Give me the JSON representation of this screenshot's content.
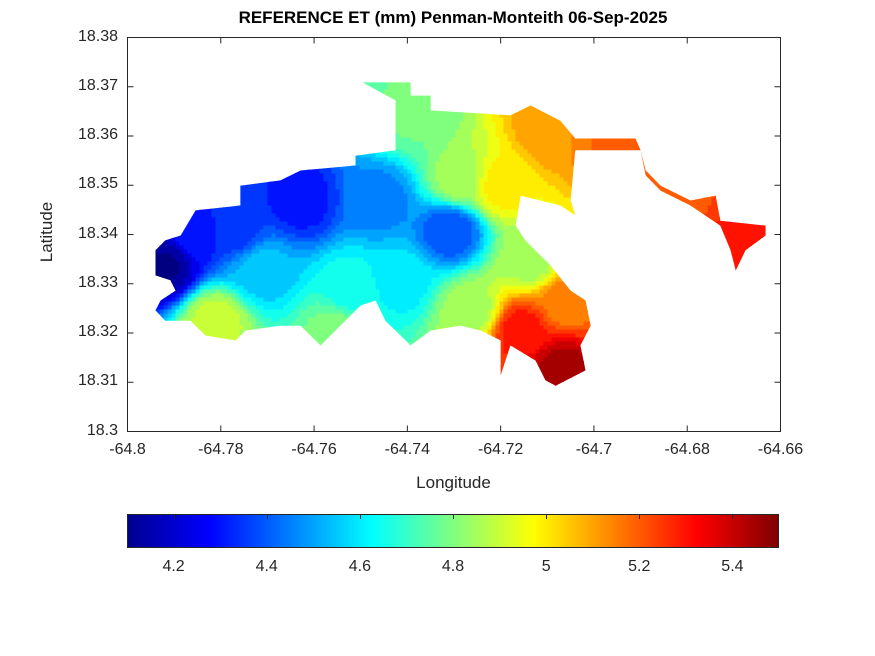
{
  "chart_data": {
    "type": "heatmap",
    "title": "REFERENCE ET (mm) Penman-Monteith 06-Sep-2025",
    "xlabel": "Longitude",
    "ylabel": "Latitude",
    "xlim": [
      -64.8,
      -64.66
    ],
    "ylim": [
      18.3,
      18.38
    ],
    "xticks": [
      -64.8,
      -64.78,
      -64.76,
      -64.74,
      -64.72,
      -64.7,
      -64.68,
      -64.66
    ],
    "xtick_labels": [
      "-64.8",
      "-64.78",
      "-64.76",
      "-64.74",
      "-64.72",
      "-64.7",
      "-64.68",
      "-64.66"
    ],
    "yticks": [
      18.3,
      18.31,
      18.32,
      18.33,
      18.34,
      18.35,
      18.36,
      18.37,
      18.38
    ],
    "ytick_labels": [
      "18.3",
      "18.31",
      "18.32",
      "18.33",
      "18.34",
      "18.35",
      "18.36",
      "18.37",
      "18.38"
    ],
    "colormap": "jet",
    "colorbar": {
      "location": "southoutside",
      "clim": [
        4.1,
        5.5
      ],
      "ticks": [
        4.2,
        4.4,
        4.6,
        4.8,
        5.0,
        5.2,
        5.4
      ],
      "tick_labels": [
        "4.2",
        "4.4",
        "4.6",
        "4.8",
        "5",
        "5.2",
        "5.4"
      ]
    },
    "outline_lonlat": [
      [
        -64.794,
        18.3368
      ],
      [
        -64.7919,
        18.3388
      ],
      [
        -64.7886,
        18.3398
      ],
      [
        -64.7854,
        18.3449
      ],
      [
        -64.7758,
        18.3459
      ],
      [
        -64.7758,
        18.3499
      ],
      [
        -64.7672,
        18.351
      ],
      [
        -64.7629,
        18.353
      ],
      [
        -64.7511,
        18.354
      ],
      [
        -64.7511,
        18.356
      ],
      [
        -64.7425,
        18.3571
      ],
      [
        -64.7425,
        18.3672
      ],
      [
        -64.7496,
        18.3709
      ],
      [
        -64.7393,
        18.3709
      ],
      [
        -64.7393,
        18.3682
      ],
      [
        -64.735,
        18.3682
      ],
      [
        -64.735,
        18.3652
      ],
      [
        -64.7179,
        18.3642
      ],
      [
        -64.7136,
        18.3662
      ],
      [
        -64.7072,
        18.3631
      ],
      [
        -64.704,
        18.3595
      ],
      [
        -64.6911,
        18.3595
      ],
      [
        -64.69,
        18.3571
      ],
      [
        -64.6889,
        18.353
      ],
      [
        -64.6857,
        18.3499
      ],
      [
        -64.6793,
        18.3469
      ],
      [
        -64.6739,
        18.3479
      ],
      [
        -64.6729,
        18.3428
      ],
      [
        -64.6632,
        18.3418
      ],
      [
        -64.6632,
        18.3398
      ],
      [
        -64.6675,
        18.3368
      ],
      [
        -64.6696,
        18.3327
      ],
      [
        -64.6707,
        18.3368
      ],
      [
        -64.6729,
        18.3418
      ],
      [
        -64.6793,
        18.3459
      ],
      [
        -64.6857,
        18.3489
      ],
      [
        -64.6889,
        18.352
      ],
      [
        -64.69,
        18.3571
      ],
      [
        -64.704,
        18.3571
      ],
      [
        -64.705,
        18.3469
      ],
      [
        -64.704,
        18.3439
      ],
      [
        -64.7072,
        18.3459
      ],
      [
        -64.7157,
        18.3479
      ],
      [
        -64.7168,
        18.3418
      ],
      [
        -64.7147,
        18.3388
      ],
      [
        -64.7093,
        18.3337
      ],
      [
        -64.705,
        18.3286
      ],
      [
        -64.7018,
        18.3266
      ],
      [
        -64.7007,
        18.3215
      ],
      [
        -64.7029,
        18.3175
      ],
      [
        -64.7018,
        18.3124
      ],
      [
        -64.7082,
        18.3093
      ],
      [
        -64.7104,
        18.3104
      ],
      [
        -64.7125,
        18.3144
      ],
      [
        -64.7179,
        18.3175
      ],
      [
        -64.72,
        18.3114
      ],
      [
        -64.72,
        18.3185
      ],
      [
        -64.7243,
        18.3205
      ],
      [
        -64.7286,
        18.3215
      ],
      [
        -64.735,
        18.3205
      ],
      [
        -64.7393,
        18.3175
      ],
      [
        -64.7447,
        18.3225
      ],
      [
        -64.7468,
        18.3266
      ],
      [
        -64.75,
        18.3256
      ],
      [
        -64.7533,
        18.3225
      ],
      [
        -64.7586,
        18.3175
      ],
      [
        -64.7629,
        18.3215
      ],
      [
        -64.7672,
        18.3215
      ],
      [
        -64.7747,
        18.3205
      ],
      [
        -64.7768,
        18.3185
      ],
      [
        -64.7833,
        18.3195
      ],
      [
        -64.7865,
        18.3225
      ],
      [
        -64.7919,
        18.3225
      ],
      [
        -64.794,
        18.3246
      ],
      [
        -64.7929,
        18.3266
      ],
      [
        -64.7897,
        18.3286
      ],
      [
        -64.7908,
        18.3307
      ],
      [
        -64.794,
        18.3317
      ]
    ],
    "samples": [
      {
        "lon": -64.7919,
        "lat": 18.3337,
        "value": 4.12
      },
      {
        "lon": -64.7854,
        "lat": 18.3398,
        "value": 4.3
      },
      {
        "lon": -64.7629,
        "lat": 18.3469,
        "value": 4.3
      },
      {
        "lon": -64.7768,
        "lat": 18.3408,
        "value": 4.35
      },
      {
        "lon": -64.7715,
        "lat": 18.3327,
        "value": 4.55
      },
      {
        "lon": -64.7522,
        "lat": 18.3286,
        "value": 4.65
      },
      {
        "lon": -64.7458,
        "lat": 18.3469,
        "value": 4.45
      },
      {
        "lon": -64.7307,
        "lat": 18.3408,
        "value": 4.38
      },
      {
        "lon": -64.7393,
        "lat": 18.3642,
        "value": 4.78
      },
      {
        "lon": -64.7286,
        "lat": 18.351,
        "value": 4.85
      },
      {
        "lon": -64.72,
        "lat": 18.3499,
        "value": 5.0
      },
      {
        "lon": -64.7093,
        "lat": 18.3611,
        "value": 5.12
      },
      {
        "lon": -64.6964,
        "lat": 18.3591,
        "value": 5.18
      },
      {
        "lon": -64.6707,
        "lat": 18.3398,
        "value": 5.28
      },
      {
        "lon": -64.6793,
        "lat": 18.3469,
        "value": 5.22
      },
      {
        "lon": -64.7157,
        "lat": 18.3205,
        "value": 5.3
      },
      {
        "lon": -64.7072,
        "lat": 18.3124,
        "value": 5.45
      },
      {
        "lon": -64.7061,
        "lat": 18.3266,
        "value": 5.15
      },
      {
        "lon": -64.7811,
        "lat": 18.3225,
        "value": 4.9
      },
      {
        "lon": -64.7264,
        "lat": 18.3246,
        "value": 4.85
      },
      {
        "lon": -64.7554,
        "lat": 18.3205,
        "value": 4.8
      },
      {
        "lon": -64.7415,
        "lat": 18.3307,
        "value": 4.6
      },
      {
        "lon": -64.7136,
        "lat": 18.3347,
        "value": 4.85
      }
    ]
  }
}
